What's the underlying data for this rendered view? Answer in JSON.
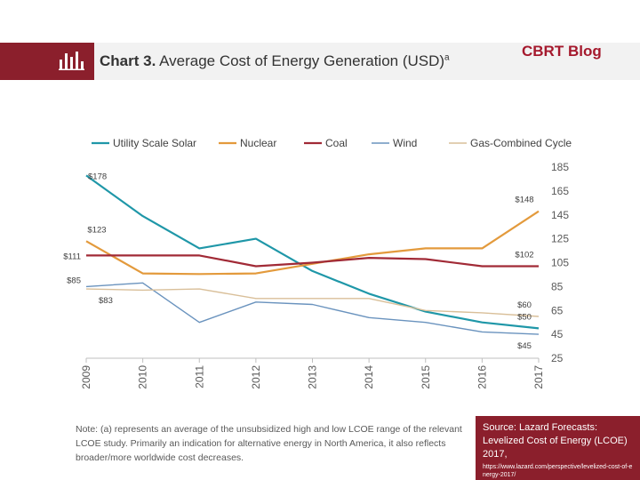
{
  "header": {
    "title_prefix": "Chart 3.",
    "title_text": "Average Cost of Energy Generation (USD)",
    "title_superscript": "a",
    "brand": "CBRT Blog",
    "icon": "bar-chart-icon"
  },
  "chart_data": {
    "type": "line",
    "x": [
      "2009",
      "2010",
      "2011",
      "2012",
      "2013",
      "2014",
      "2015",
      "2016",
      "2017"
    ],
    "y_axis_side": "right",
    "ylim": [
      25,
      185
    ],
    "yticks": [
      "185",
      "165",
      "145",
      "125",
      "105",
      "85",
      "65",
      "45",
      "25"
    ],
    "grid": false,
    "legend_position": "top",
    "series": [
      {
        "name": "Utility Scale Solar",
        "color": "#1f97a8",
        "width": 2.2,
        "values": [
          178,
          144,
          117,
          125,
          98,
          79,
          64,
          55,
          50
        ]
      },
      {
        "name": "Nuclear",
        "color": "#e39a3c",
        "width": 2.2,
        "values": [
          123,
          96,
          95.5,
          96,
          104,
          112,
          117,
          117,
          148
        ]
      },
      {
        "name": "Coal",
        "color": "#a12a36",
        "width": 2.2,
        "values": [
          111,
          111,
          111,
          102,
          105,
          109,
          108,
          102,
          102
        ]
      },
      {
        "name": "Wind",
        "color": "#6a93be",
        "width": 1.4,
        "values": [
          85,
          88,
          55,
          72,
          70,
          59,
          55,
          47,
          45
        ]
      },
      {
        "name": "Gas-Combined Cycle",
        "color": "#d9bf99",
        "width": 1.4,
        "values": [
          83,
          82,
          83,
          75,
          75,
          75,
          65,
          63,
          60
        ]
      }
    ],
    "data_labels": [
      {
        "text": "$178",
        "x": "2009",
        "y": 178,
        "side": "right"
      },
      {
        "text": "$123",
        "x": "2009",
        "y": 123,
        "side": "above"
      },
      {
        "text": "$111",
        "x": "2009",
        "y": 111,
        "side": "left"
      },
      {
        "text": "$85",
        "x": "2009",
        "y": 85,
        "side": "left"
      },
      {
        "text": "$83",
        "x": "2009",
        "y": 83,
        "side": "below"
      },
      {
        "text": "$148",
        "x": "2017",
        "y": 148,
        "side": "above"
      },
      {
        "text": "$102",
        "x": "2017",
        "y": 102,
        "side": "above"
      },
      {
        "text": "$60",
        "x": "2017",
        "y": 60,
        "side": "above"
      },
      {
        "text": "$50",
        "x": "2017",
        "y": 50,
        "side": "above"
      },
      {
        "text": "$45",
        "x": "2017",
        "y": 45,
        "side": "below"
      }
    ]
  },
  "note": "Note: (a) represents an average of the unsubsidized high and low LCOE range of the relevant LCOE study. Primarily an indication for alternative energy in North America, it also reflects broader/more worldwide cost decreases.",
  "source": {
    "main": "Source: Lazard Forecasts: Levelized Cost of Energy (LCOE) 2017,",
    "url": "https://www.lazard.com/perspective/levelized-cost-of-energy-2017/"
  }
}
